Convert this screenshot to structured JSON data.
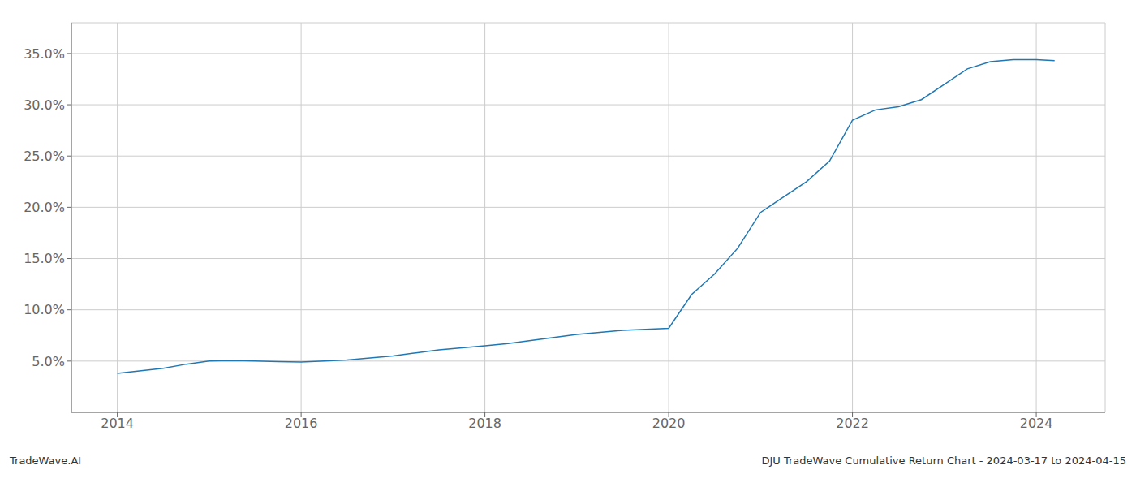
{
  "chart_data": {
    "type": "line",
    "title": "DJU TradeWave Cumulative Return Chart - 2024-03-17 to 2024-04-15",
    "annotations": [
      "TradeWave.AI"
    ],
    "x": [
      2014.0,
      2014.2,
      2014.5,
      2014.75,
      2015.0,
      2015.25,
      2015.5,
      2015.75,
      2016.0,
      2016.25,
      2016.5,
      2016.75,
      2017.0,
      2017.25,
      2017.5,
      2017.75,
      2018.0,
      2018.25,
      2018.5,
      2018.75,
      2019.0,
      2019.25,
      2019.5,
      2019.75,
      2020.0,
      2020.25,
      2020.5,
      2020.75,
      2021.0,
      2021.25,
      2021.5,
      2021.75,
      2022.0,
      2022.25,
      2022.5,
      2022.75,
      2023.0,
      2023.25,
      2023.5,
      2023.75,
      2024.0,
      2024.2
    ],
    "values": [
      3.8,
      4.0,
      4.3,
      4.7,
      5.0,
      5.05,
      5.0,
      4.95,
      4.9,
      5.0,
      5.1,
      5.3,
      5.5,
      5.8,
      6.1,
      6.3,
      6.5,
      6.7,
      7.0,
      7.3,
      7.6,
      7.8,
      8.0,
      8.1,
      8.2,
      11.5,
      13.5,
      16.0,
      19.5,
      21.0,
      22.5,
      24.5,
      28.5,
      29.5,
      29.8,
      30.5,
      32.0,
      33.5,
      34.2,
      34.4,
      34.4,
      34.3
    ],
    "color": "#1f77b4",
    "xlim": [
      2013.5,
      2024.75
    ],
    "ylim": [
      0,
      38
    ],
    "xticks": [
      2014,
      2016,
      2018,
      2020,
      2022,
      2024
    ],
    "yticks": [
      {
        "value": 5.0,
        "label": "5.0%"
      },
      {
        "value": 10.0,
        "label": "10.0%"
      },
      {
        "value": 15.0,
        "label": "15.0%"
      },
      {
        "value": 20.0,
        "label": "20.0%"
      },
      {
        "value": 25.0,
        "label": "25.0%"
      },
      {
        "value": 30.0,
        "label": "30.0%"
      },
      {
        "value": 35.0,
        "label": "35.0%"
      }
    ],
    "grid": true
  }
}
